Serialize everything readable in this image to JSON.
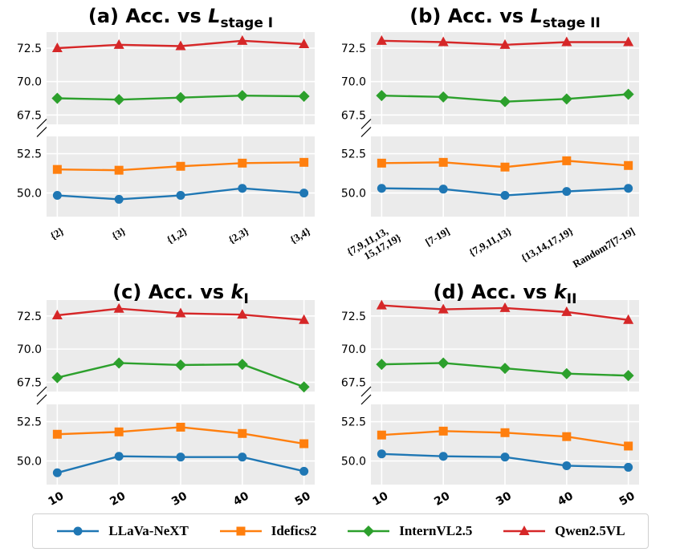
{
  "chart_data": [
    {
      "type": "line",
      "title": {
        "prefix": "(a) Acc. vs ",
        "var": "L",
        "sub": "stage I"
      },
      "categories": [
        "{2}",
        "{3}",
        "{1,2}",
        "{2,3}",
        "{3,4}"
      ],
      "xtick_style": "text",
      "ylim_top": [
        66.8,
        73.7
      ],
      "ylim_bottom": [
        48.5,
        53.6
      ],
      "yticks_top": [
        "72.5",
        "70.0",
        "67.5"
      ],
      "yticks_bottom": [
        "52.5",
        "50.0"
      ],
      "series": [
        {
          "name": "LLaVa-NeXT",
          "values": [
            49.85,
            49.6,
            49.85,
            50.3,
            50.0
          ]
        },
        {
          "name": "Idefics2",
          "values": [
            51.5,
            51.45,
            51.7,
            51.9,
            51.95
          ]
        },
        {
          "name": "InternVL2.5",
          "values": [
            68.75,
            68.65,
            68.8,
            68.95,
            68.9
          ]
        },
        {
          "name": "Qwen2.5VL",
          "values": [
            72.5,
            72.75,
            72.65,
            73.05,
            72.8
          ]
        }
      ]
    },
    {
      "type": "line",
      "title": {
        "prefix": "(b) Acc. vs ",
        "var": "L",
        "sub": "stage II"
      },
      "categories": [
        [
          "{7,9,11,13,",
          "15,17,19}"
        ],
        [
          "[7-19]"
        ],
        [
          "{7,9,11,13}"
        ],
        [
          "{13,14,17,19}"
        ],
        [
          "Random7[7-19]"
        ]
      ],
      "xtick_style": "text",
      "ylim_top": [
        66.8,
        73.7
      ],
      "ylim_bottom": [
        48.5,
        53.6
      ],
      "yticks_top": [
        "72.5",
        "70.0",
        "67.5"
      ],
      "yticks_bottom": [
        "52.5",
        "50.0"
      ],
      "series": [
        {
          "name": "LLaVa-NeXT",
          "values": [
            50.3,
            50.25,
            49.85,
            50.1,
            50.3
          ]
        },
        {
          "name": "Idefics2",
          "values": [
            51.9,
            51.95,
            51.65,
            52.05,
            51.75
          ]
        },
        {
          "name": "InternVL2.5",
          "values": [
            68.95,
            68.85,
            68.5,
            68.7,
            69.05
          ]
        },
        {
          "name": "Qwen2.5VL",
          "values": [
            73.05,
            72.95,
            72.75,
            72.95,
            72.95
          ]
        }
      ]
    },
    {
      "type": "line",
      "title": {
        "prefix": "(c) Acc. vs ",
        "var": "k",
        "sub": "I"
      },
      "categories": [
        "10",
        "20",
        "30",
        "40",
        "50"
      ],
      "xtick_style": "num",
      "ylim_top": [
        66.8,
        73.7
      ],
      "ylim_bottom": [
        48.5,
        53.6
      ],
      "yticks_top": [
        "72.5",
        "70.0",
        "67.5"
      ],
      "yticks_bottom": [
        "52.5",
        "50.0"
      ],
      "series": [
        {
          "name": "LLaVa-NeXT",
          "values": [
            49.25,
            50.3,
            50.25,
            50.25,
            49.35
          ]
        },
        {
          "name": "Idefics2",
          "values": [
            51.7,
            51.85,
            52.15,
            51.75,
            51.1
          ]
        },
        {
          "name": "InternVL2.5",
          "values": [
            67.85,
            68.95,
            68.8,
            68.85,
            67.15
          ]
        },
        {
          "name": "Qwen2.5VL",
          "values": [
            72.55,
            73.05,
            72.7,
            72.6,
            72.2
          ]
        }
      ]
    },
    {
      "type": "line",
      "title": {
        "prefix": "(d) Acc. vs ",
        "var": "k",
        "sub": "II"
      },
      "categories": [
        "10",
        "20",
        "30",
        "40",
        "50"
      ],
      "xtick_style": "num",
      "ylim_top": [
        66.8,
        73.7
      ],
      "ylim_bottom": [
        48.5,
        53.6
      ],
      "yticks_top": [
        "72.5",
        "70.0",
        "67.5"
      ],
      "yticks_bottom": [
        "52.5",
        "50.0"
      ],
      "series": [
        {
          "name": "LLaVa-NeXT",
          "values": [
            50.45,
            50.3,
            50.25,
            49.7,
            49.6
          ]
        },
        {
          "name": "Idefics2",
          "values": [
            51.65,
            51.9,
            51.8,
            51.55,
            50.95
          ]
        },
        {
          "name": "InternVL2.5",
          "values": [
            68.85,
            68.95,
            68.55,
            68.15,
            68.0
          ]
        },
        {
          "name": "Qwen2.5VL",
          "values": [
            73.3,
            73.0,
            73.1,
            72.8,
            72.2
          ]
        }
      ]
    }
  ],
  "legend": [
    {
      "name": "LLaVa-NeXT",
      "color": "#1f77b4",
      "marker": "circle"
    },
    {
      "name": "Idefics2",
      "color": "#ff7f0e",
      "marker": "square"
    },
    {
      "name": "InternVL2.5",
      "color": "#2ca02c",
      "marker": "diamond"
    },
    {
      "name": "Qwen2.5VL",
      "color": "#d62728",
      "marker": "triangle"
    }
  ]
}
